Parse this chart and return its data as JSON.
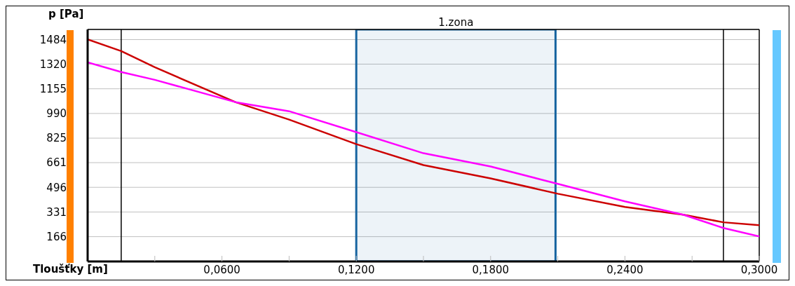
{
  "chart_data": {
    "type": "line",
    "ylabel": "p [Pa]",
    "xlabel": "Tloušťky [m]",
    "xlim": [
      0,
      0.3
    ],
    "ylim": [
      0,
      1552
    ],
    "xticks": [
      {
        "value": 0.03,
        "label": null
      },
      {
        "value": 0.06,
        "label": "0,0600"
      },
      {
        "value": 0.09,
        "label": null
      },
      {
        "value": 0.12,
        "label": "0,1200"
      },
      {
        "value": 0.15,
        "label": null
      },
      {
        "value": 0.18,
        "label": "0,1800"
      },
      {
        "value": 0.21,
        "label": null
      },
      {
        "value": 0.24,
        "label": "0,2400"
      },
      {
        "value": 0.27,
        "label": null
      },
      {
        "value": 0.3,
        "label": "0,3000"
      }
    ],
    "yticks": [
      166,
      331,
      496,
      661,
      825,
      990,
      1155,
      1320,
      1484
    ],
    "grid": "y",
    "legend": false,
    "marker": "none",
    "line_style": "solid",
    "x": [
      0,
      0.015,
      0.03,
      0.066,
      0.09,
      0.12,
      0.15,
      0.18,
      0.21,
      0.24,
      0.266,
      0.284,
      0.3
    ],
    "series": [
      {
        "color": "#cc0000",
        "values": [
          1486,
          1407,
          1299,
          1066,
          949,
          785,
          645,
          556,
          453,
          365,
          313,
          262,
          243
        ]
      },
      {
        "color": "#ff00ff",
        "values": [
          1332,
          1267,
          1215,
          1066,
          1005,
          865,
          724,
          635,
          519,
          402,
          313,
          224,
          168
        ]
      }
    ],
    "bands": [
      {
        "axis": "x",
        "from": 0.12,
        "to": 0.209,
        "label": "1.zona",
        "color": "#1764a0"
      }
    ],
    "ref_lines": [
      {
        "axis": "x",
        "value": 0.015,
        "color": "#000000"
      },
      {
        "axis": "x",
        "value": 0.284,
        "color": "#000000"
      }
    ]
  }
}
